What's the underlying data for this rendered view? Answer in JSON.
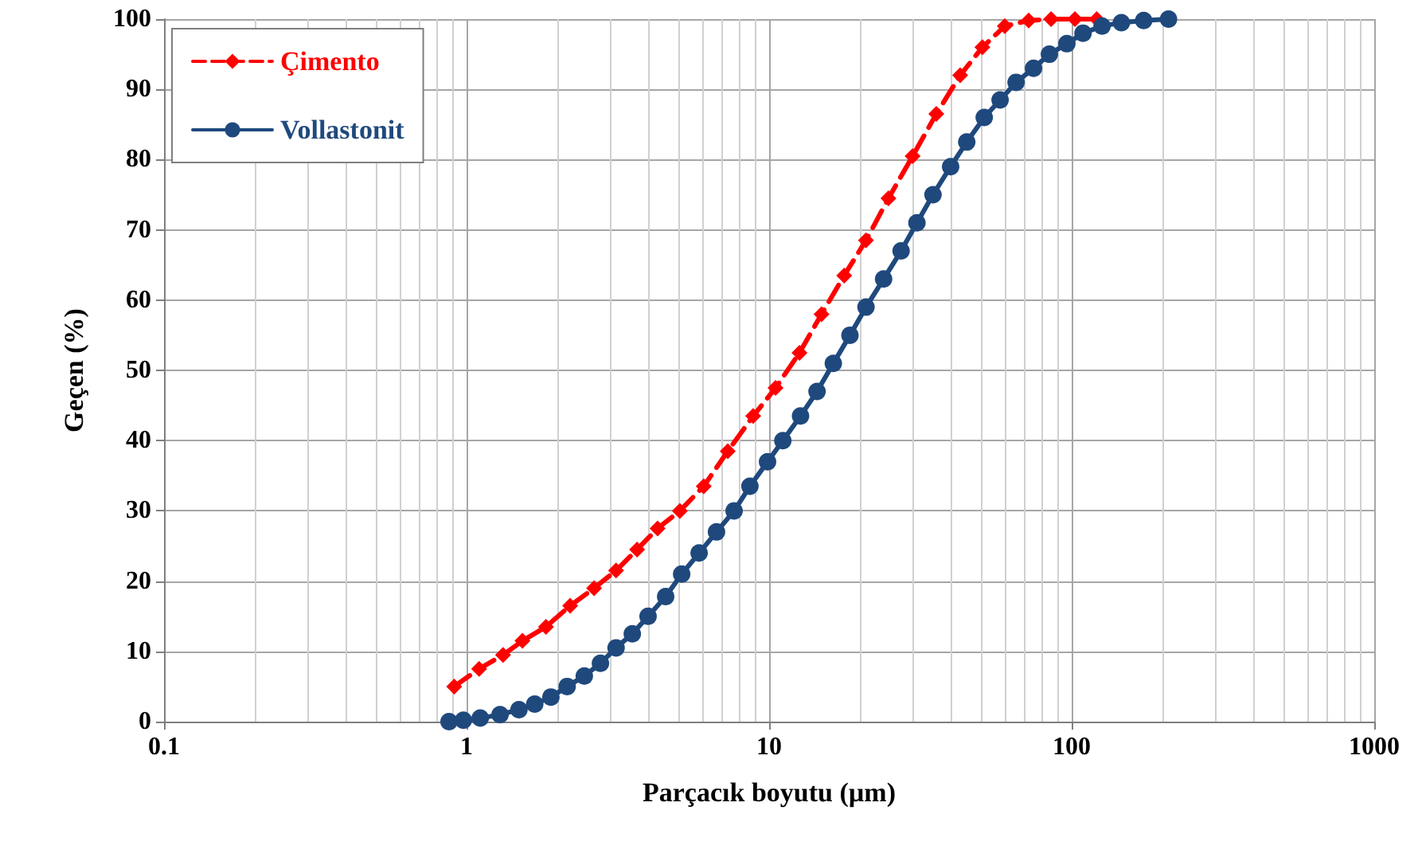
{
  "chart_data": {
    "type": "line",
    "xlabel": "Parçacık boyutu (µm)",
    "ylabel": "Geçen (%)",
    "log": "x",
    "grid": true,
    "legend": "top left",
    "xlim": [
      0.1,
      1000
    ],
    "xticks": [
      0.1,
      1,
      10,
      100,
      1000
    ],
    "ylim": [
      0,
      100
    ],
    "yticks": [
      0,
      10,
      20,
      30,
      40,
      50,
      60,
      70,
      80,
      90,
      100
    ],
    "series": [
      {
        "name": "Çimento",
        "color": "#ff0000",
        "marker": "diamond",
        "line_style": "dashed",
        "x": [
          0.91,
          1.1,
          1.32,
          1.53,
          1.83,
          2.2,
          2.64,
          3.12,
          3.66,
          4.28,
          5.07,
          6.08,
          7.3,
          8.86,
          10.5,
          12.6,
          14.9,
          17.7,
          20.9,
          24.8,
          29.8,
          35.7,
          42.8,
          50.7,
          60.1,
          72.1,
          85.5,
          102.5,
          121
        ],
        "values": [
          5,
          7.5,
          9.5,
          11.5,
          13.5,
          16.5,
          19,
          21.5,
          24.5,
          27.5,
          30,
          33.5,
          38.5,
          43.5,
          47.5,
          52.5,
          58,
          63.5,
          68.5,
          74.5,
          80.5,
          86.5,
          92,
          96,
          99,
          99.8,
          100,
          100,
          100
        ]
      },
      {
        "name": "Vollastonit",
        "color": "#1f497d",
        "marker": "circle",
        "line_style": "solid",
        "x": [
          0.875,
          0.976,
          1.11,
          1.29,
          1.49,
          1.68,
          1.9,
          2.15,
          2.45,
          2.77,
          3.12,
          3.53,
          3.98,
          4.55,
          5.14,
          5.87,
          6.7,
          7.66,
          8.64,
          9.88,
          11.1,
          12.7,
          14.4,
          16.3,
          18.5,
          20.9,
          23.9,
          27.3,
          30.8,
          34.8,
          39.8,
          45.0,
          51.4,
          58.0,
          65.5,
          74.8,
          84.4,
          96.4,
          109,
          126,
          146,
          173,
          209
        ],
        "values": [
          0,
          0.2,
          0.5,
          1,
          1.7,
          2.5,
          3.5,
          5,
          6.5,
          8.3,
          10.5,
          12.5,
          15,
          17.8,
          21,
          24,
          27,
          30,
          33.5,
          37,
          40,
          43.5,
          47,
          51,
          55,
          59,
          63,
          67,
          71,
          75,
          79,
          82.5,
          86,
          88.5,
          91,
          93,
          95,
          96.5,
          98,
          99,
          99.5,
          99.8,
          100
        ]
      }
    ]
  }
}
